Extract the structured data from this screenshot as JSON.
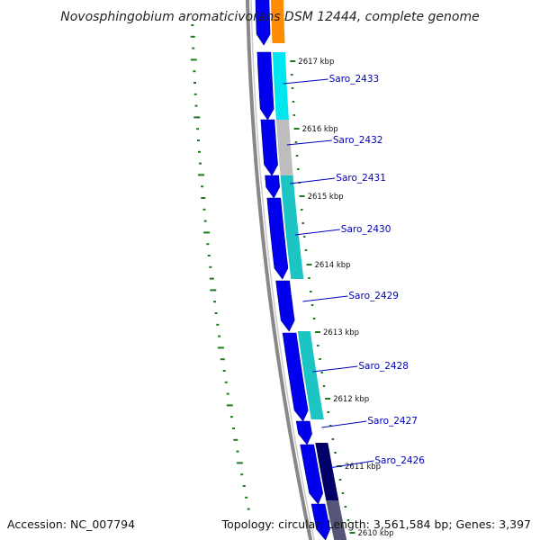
{
  "title": "Novosphingobium aromaticivorans DSM 12444, complete genome",
  "accession": "Accession: NC_007794",
  "summary": "Topology: circular; Length: 3,561,584 bp; Genes: 3,397",
  "colors": {
    "cds_strand": "#0000ee",
    "backbone": "#888888",
    "gc_skew": "#1f7a1f",
    "label": "#0000bb",
    "kbp_tick": "#1f7a1f",
    "ortholog_orange": "#ff8c00",
    "ortholog_cyan": "#00e5ee",
    "ortholog_grey": "#bdbdbd",
    "ortholog_teal": "#1cc4c4",
    "ortholog_navy": "#000066"
  },
  "kbp_ticks": [
    {
      "kbp": 2617,
      "label": "2617 kbp"
    },
    {
      "kbp": 2616,
      "label": "2616 kbp"
    },
    {
      "kbp": 2615,
      "label": "2615 kbp"
    },
    {
      "kbp": 2614,
      "label": "2614 kbp"
    },
    {
      "kbp": 2613,
      "label": "2613 kbp"
    },
    {
      "kbp": 2612,
      "label": "2612 kbp"
    },
    {
      "kbp": 2611,
      "label": "2611 kbp"
    },
    {
      "kbp": 2610,
      "label": "2610 kbp"
    }
  ],
  "genes": [
    {
      "name": "Saro_2433"
    },
    {
      "name": "Saro_2432"
    },
    {
      "name": "Saro_2431"
    },
    {
      "name": "Saro_2430"
    },
    {
      "name": "Saro_2429"
    },
    {
      "name": "Saro_2428"
    },
    {
      "name": "Saro_2427"
    },
    {
      "name": "Saro_2426"
    }
  ]
}
